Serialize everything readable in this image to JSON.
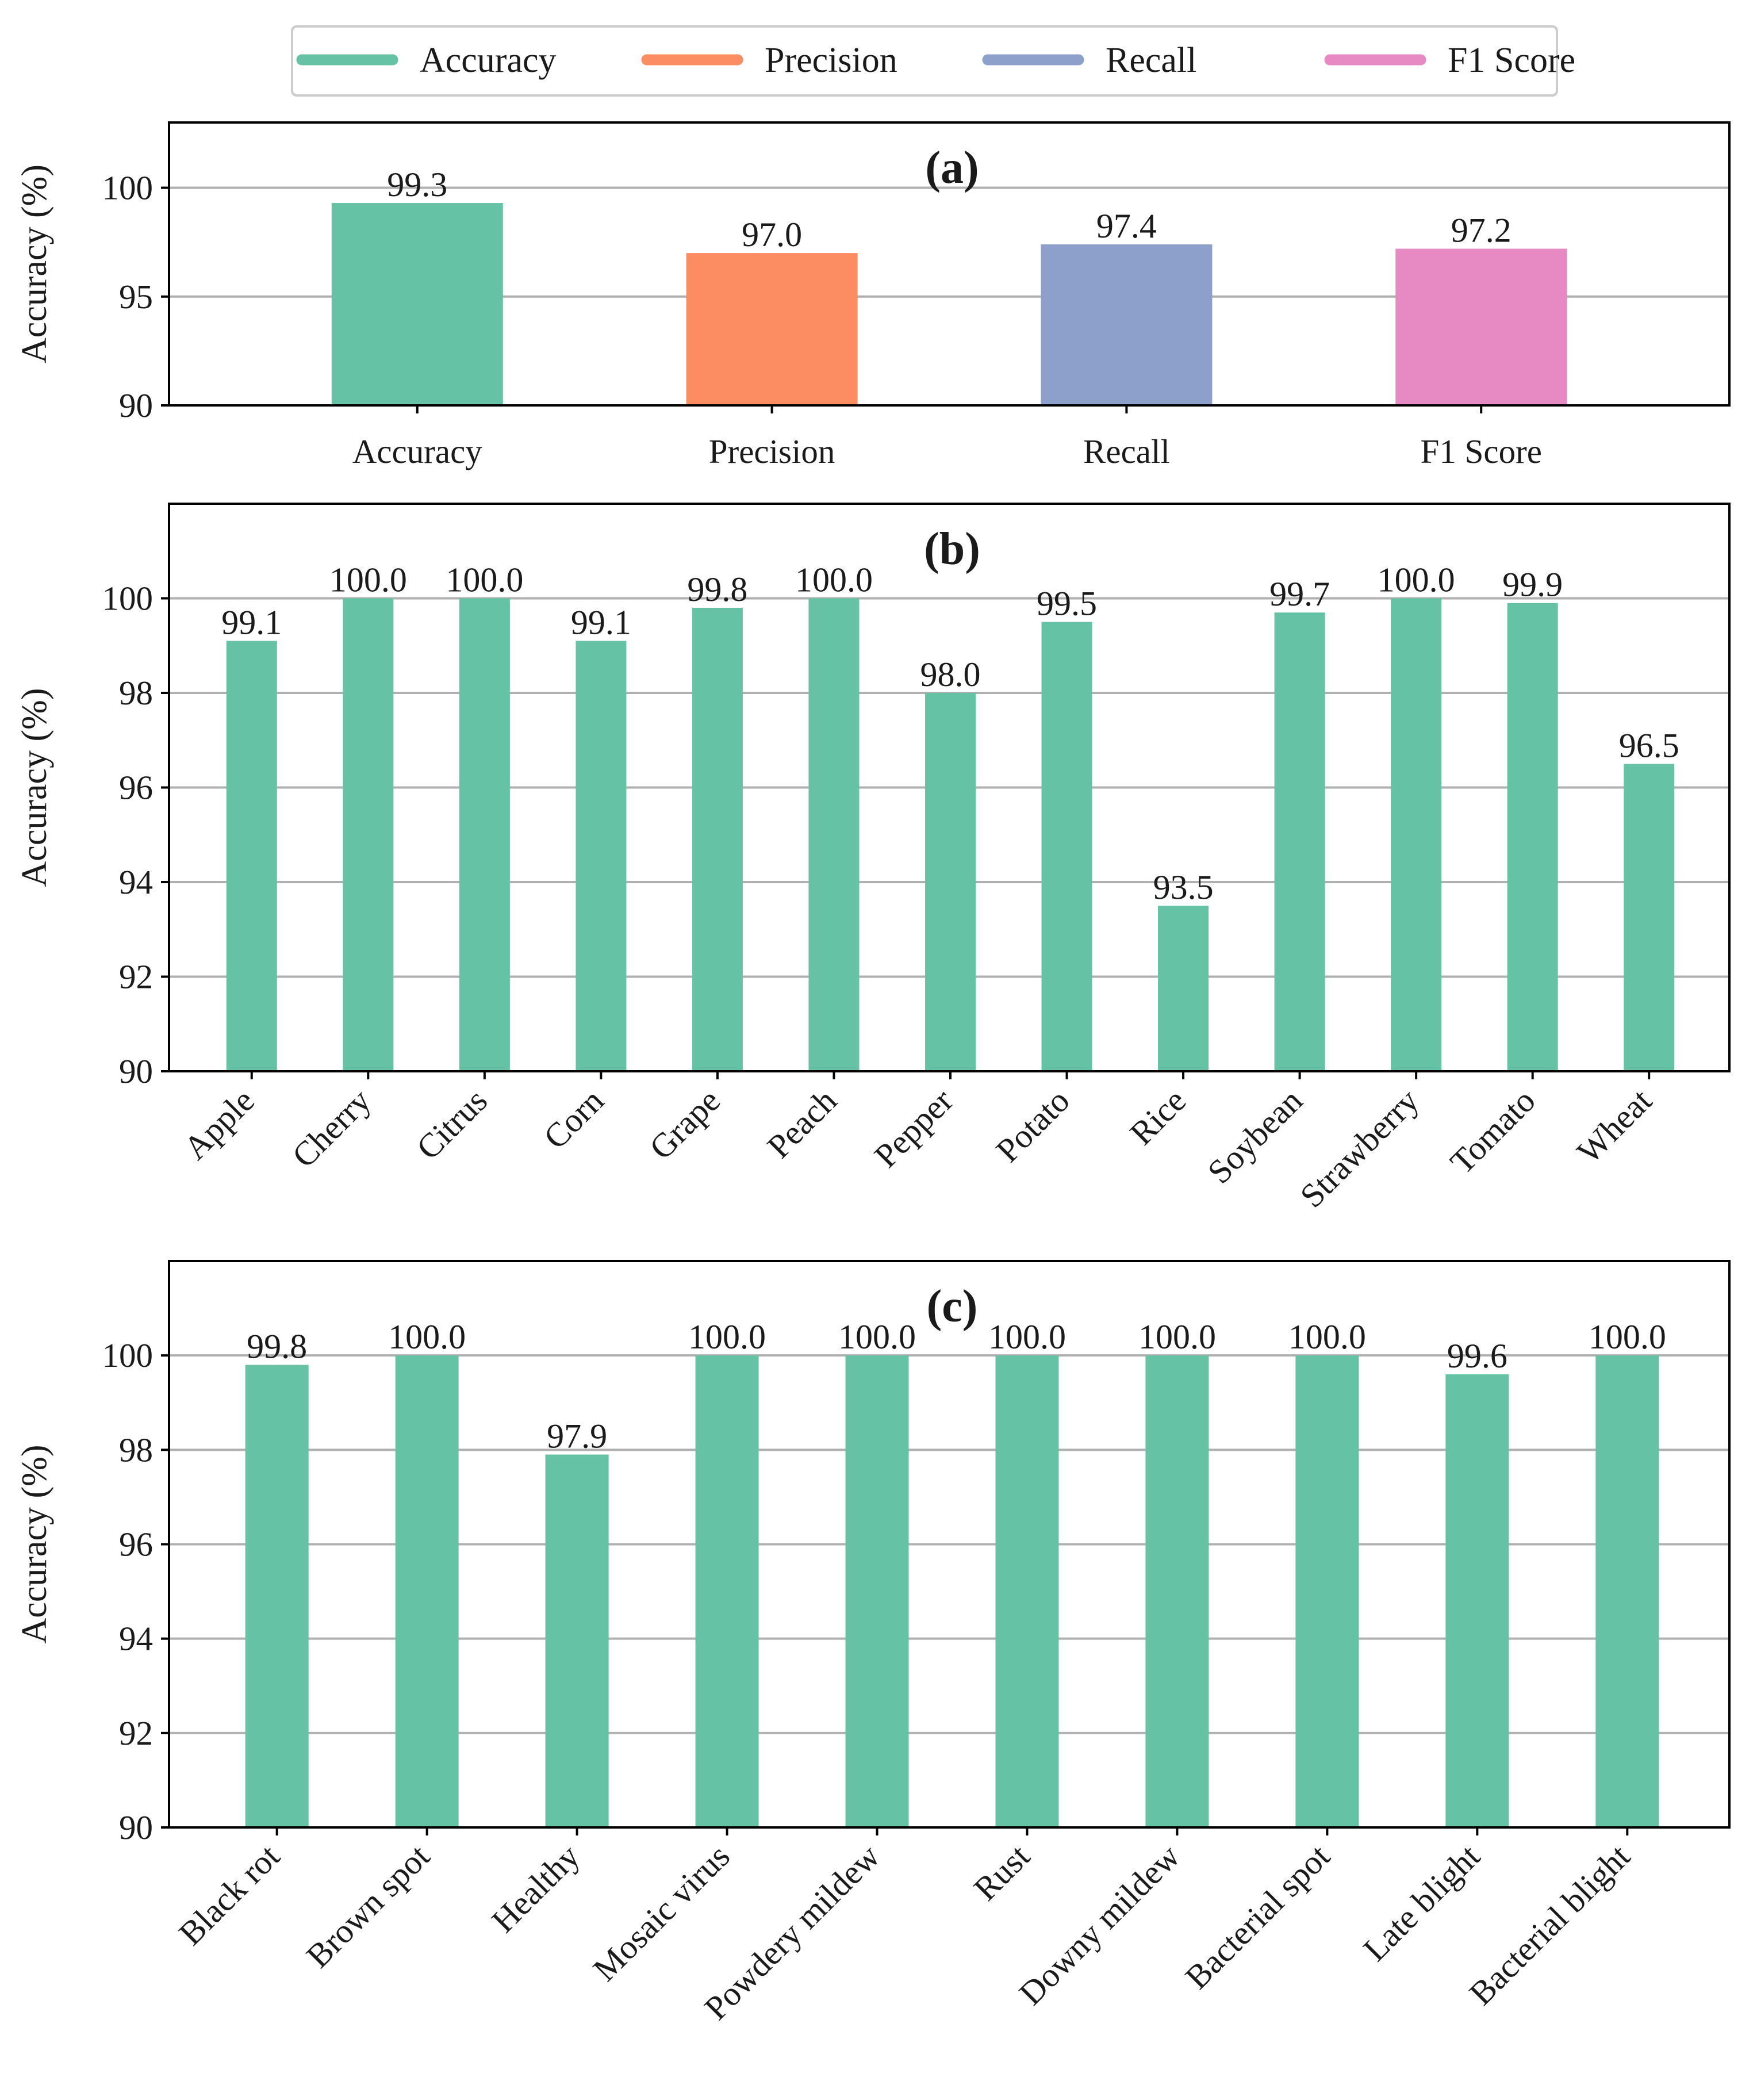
{
  "legend": {
    "items": [
      {
        "label": "Accuracy",
        "color": "#66c2a5"
      },
      {
        "label": "Precision",
        "color": "#fc8d62"
      },
      {
        "label": "Recall",
        "color": "#8da0cb"
      },
      {
        "label": "F1 Score",
        "color": "#e78ac3"
      }
    ]
  },
  "chart_data": [
    {
      "type": "bar",
      "panel_label": "(a)",
      "ylabel": "Accuracy (%)",
      "categories": [
        "Accuracy",
        "Precision",
        "Recall",
        "F1 Score"
      ],
      "values": [
        99.3,
        97.0,
        97.4,
        97.2
      ],
      "value_labels": [
        "99.3",
        "97.0",
        "97.4",
        "97.2"
      ],
      "colors": [
        "#66c2a5",
        "#fc8d62",
        "#8da0cb",
        "#e78ac3"
      ],
      "ylim": [
        90,
        103
      ],
      "yticks": [
        90,
        95,
        100
      ],
      "grid": true,
      "xtick_rotation": 0
    },
    {
      "type": "bar",
      "panel_label": "(b)",
      "ylabel": "Accuracy (%)",
      "categories": [
        "Apple",
        "Cherry",
        "Citrus",
        "Corn",
        "Grape",
        "Peach",
        "Pepper",
        "Potato",
        "Rice",
        "Soybean",
        "Strawberry",
        "Tomato",
        "Wheat"
      ],
      "values": [
        99.1,
        100.0,
        100.0,
        99.1,
        99.8,
        100.0,
        98.0,
        99.5,
        93.5,
        99.7,
        100.0,
        99.9,
        96.5
      ],
      "value_labels": [
        "99.1",
        "100.0",
        "100.0",
        "99.1",
        "99.8",
        "100.0",
        "98.0",
        "99.5",
        "93.5",
        "99.7",
        "100.0",
        "99.9",
        "96.5"
      ],
      "colors": [
        "#66c2a5"
      ],
      "ylim": [
        90,
        102
      ],
      "yticks": [
        90,
        92,
        94,
        96,
        98,
        100
      ],
      "grid": true,
      "xtick_rotation": -45
    },
    {
      "type": "bar",
      "panel_label": "(c)",
      "ylabel": "Accuracy (%)",
      "categories": [
        "Black rot",
        "Brown spot",
        "Healthy",
        "Mosaic virus",
        "Powdery mildew",
        "Rust",
        "Downy mildew",
        "Bacterial spot",
        "Late blight",
        "Bacterial blight"
      ],
      "values": [
        99.8,
        100.0,
        97.9,
        100.0,
        100.0,
        100.0,
        100.0,
        100.0,
        99.6,
        100.0
      ],
      "value_labels": [
        "99.8",
        "100.0",
        "97.9",
        "100.0",
        "100.0",
        "100.0",
        "100.0",
        "100.0",
        "99.6",
        "100.0"
      ],
      "colors": [
        "#66c2a5"
      ],
      "ylim": [
        90,
        102
      ],
      "yticks": [
        90,
        92,
        94,
        96,
        98,
        100
      ],
      "grid": true,
      "xtick_rotation": -45
    }
  ]
}
